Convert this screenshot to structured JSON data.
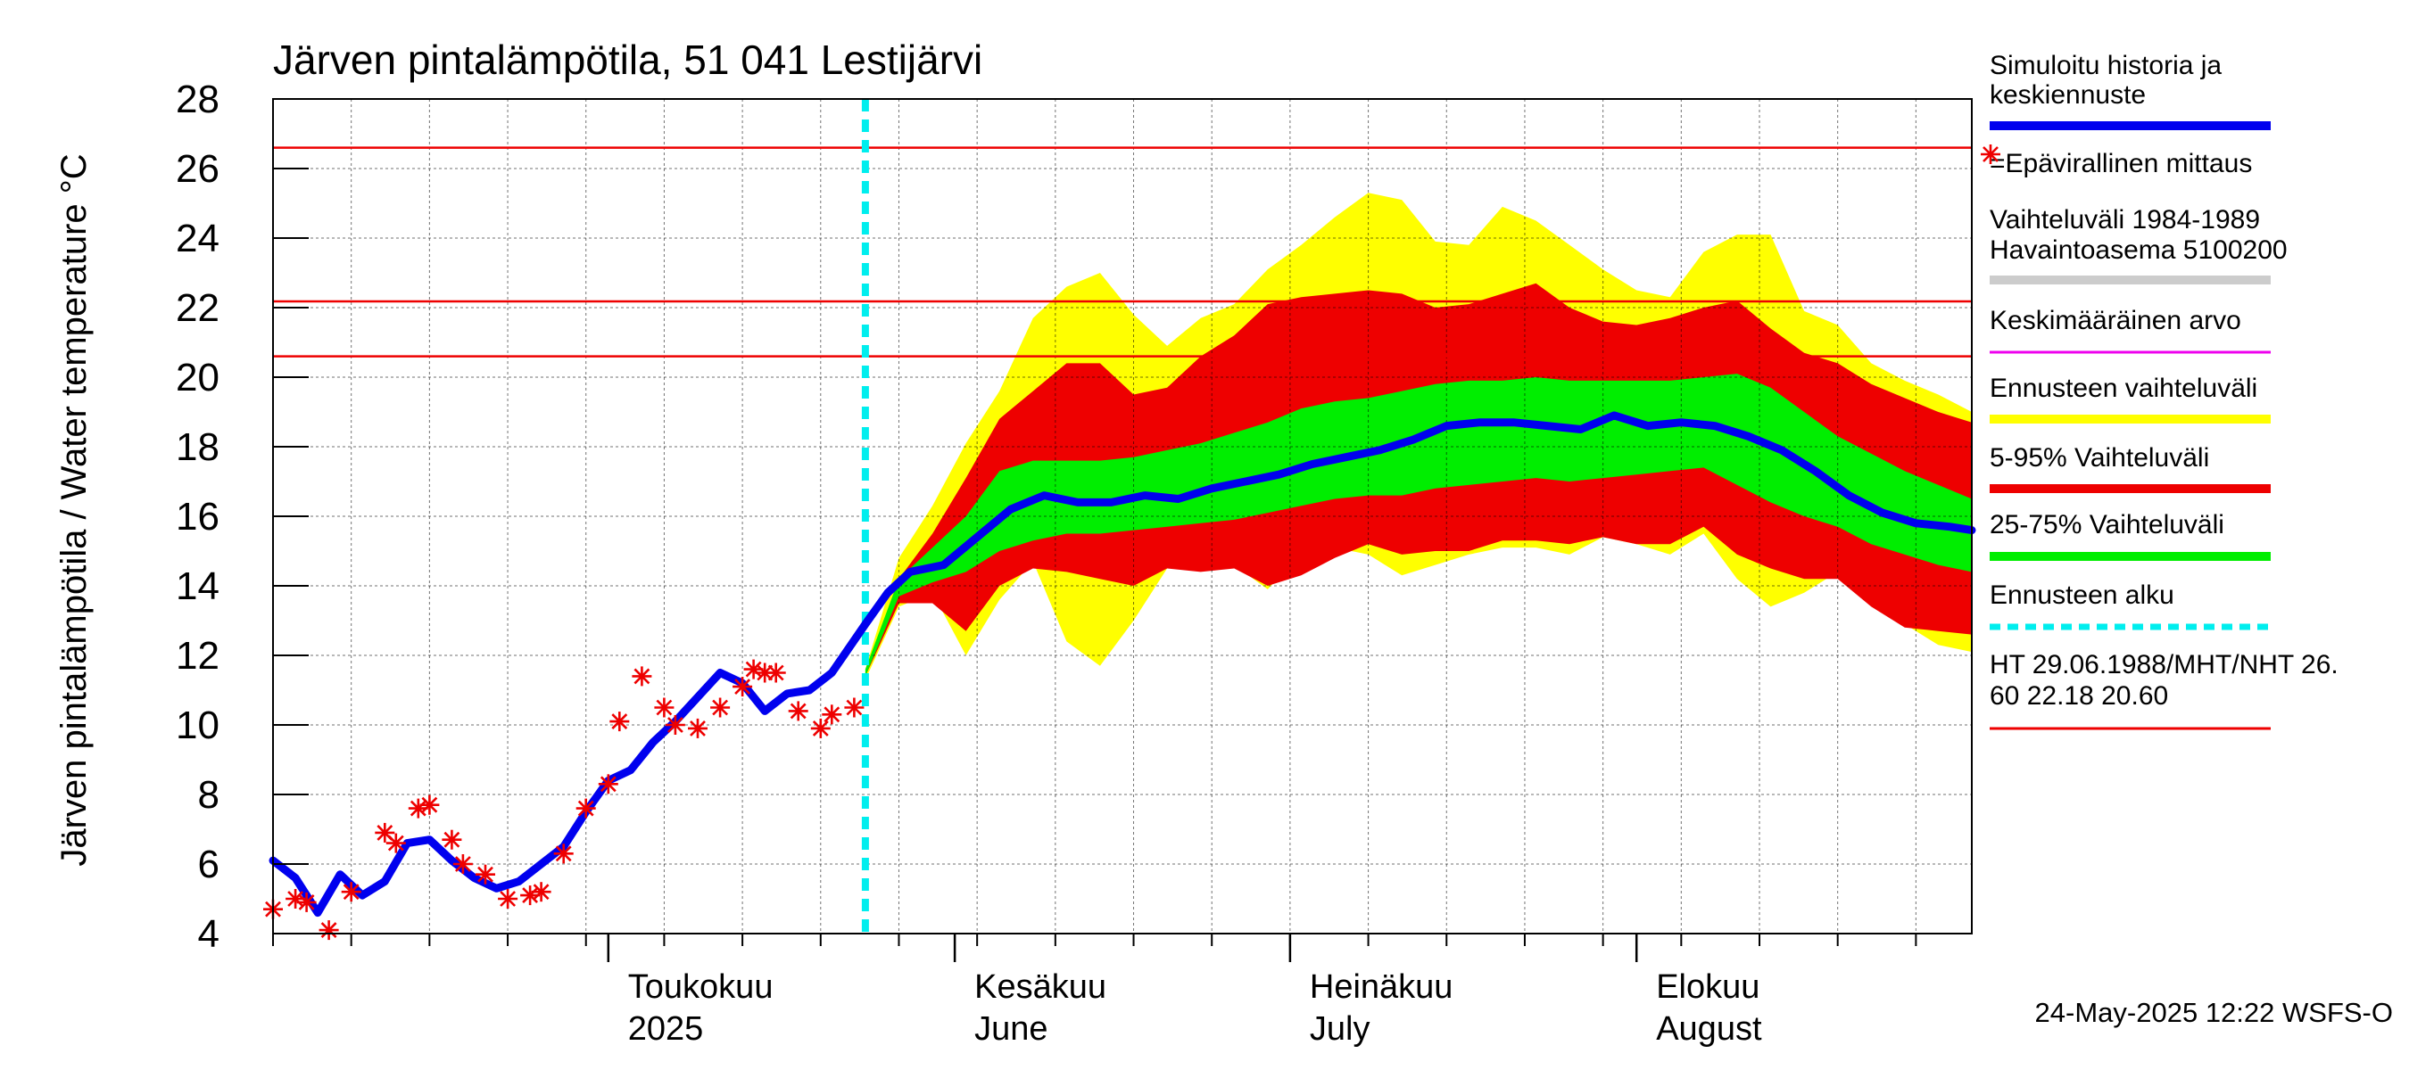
{
  "chart_data": {
    "type": "area",
    "title": "Järven pintalämpötila, 51 041 Lestijärvi",
    "ylabel": "Järven pintalämpötila / Water temperature °C",
    "ylim": [
      4,
      28
    ],
    "y_ticks": [
      4,
      6,
      8,
      10,
      12,
      14,
      16,
      18,
      20,
      22,
      24,
      26,
      28
    ],
    "x_range": [
      "2025-04-01",
      "2025-08-31"
    ],
    "month_labels": [
      {
        "date": "2025-05-01",
        "fi": "Toukokuu",
        "en": "2025"
      },
      {
        "date": "2025-06-01",
        "fi": "Kesäkuu",
        "en": "June"
      },
      {
        "date": "2025-07-01",
        "fi": "Heinäkuu",
        "en": "July"
      },
      {
        "date": "2025-08-01",
        "fi": "Elokuu",
        "en": "August"
      }
    ],
    "grid": true,
    "forecast_start": "2025-05-24",
    "reference_lines": [
      {
        "label": "HT",
        "value": 26.6
      },
      {
        "label": "MHT",
        "value": 22.18
      },
      {
        "label": "NHT",
        "value": 20.6
      }
    ],
    "series": [
      {
        "name": "Simuloitu historia ja keskiennuste",
        "color": "#0000ee",
        "x": [
          "2025-04-01",
          "2025-04-03",
          "2025-04-05",
          "2025-04-07",
          "2025-04-09",
          "2025-04-11",
          "2025-04-13",
          "2025-04-15",
          "2025-04-17",
          "2025-04-19",
          "2025-04-21",
          "2025-04-23",
          "2025-04-25",
          "2025-04-27",
          "2025-04-29",
          "2025-05-01",
          "2025-05-03",
          "2025-05-05",
          "2025-05-07",
          "2025-05-09",
          "2025-05-11",
          "2025-05-13",
          "2025-05-15",
          "2025-05-17",
          "2025-05-19",
          "2025-05-21",
          "2025-05-24",
          "2025-05-26",
          "2025-05-28",
          "2025-05-31",
          "2025-06-03",
          "2025-06-06",
          "2025-06-09",
          "2025-06-12",
          "2025-06-15",
          "2025-06-18",
          "2025-06-21",
          "2025-06-24",
          "2025-06-27",
          "2025-06-30",
          "2025-07-03",
          "2025-07-06",
          "2025-07-09",
          "2025-07-12",
          "2025-07-15",
          "2025-07-18",
          "2025-07-21",
          "2025-07-24",
          "2025-07-27",
          "2025-07-30",
          "2025-08-02",
          "2025-08-05",
          "2025-08-08",
          "2025-08-11",
          "2025-08-14",
          "2025-08-17",
          "2025-08-20",
          "2025-08-23",
          "2025-08-26",
          "2025-08-29",
          "2025-08-31"
        ],
        "values": [
          6.1,
          5.6,
          4.6,
          5.7,
          5.1,
          5.5,
          6.6,
          6.7,
          6.1,
          5.6,
          5.3,
          5.5,
          6.0,
          6.5,
          7.5,
          8.4,
          8.7,
          9.5,
          10.1,
          10.8,
          11.5,
          11.2,
          10.4,
          10.9,
          11.0,
          11.5,
          12.9,
          13.8,
          14.4,
          14.6,
          15.4,
          16.2,
          16.6,
          16.4,
          16.4,
          16.6,
          16.5,
          16.8,
          17.0,
          17.2,
          17.5,
          17.7,
          17.9,
          18.2,
          18.6,
          18.7,
          18.7,
          18.6,
          18.5,
          18.9,
          18.6,
          18.7,
          18.6,
          18.3,
          17.9,
          17.3,
          16.6,
          16.1,
          15.8,
          15.7,
          15.6
        ]
      },
      {
        "name": "=Epävirallinen mittaus",
        "color": "#ee0000",
        "x": [
          "2025-04-01",
          "2025-04-03",
          "2025-04-04",
          "2025-04-06",
          "2025-04-08",
          "2025-04-11",
          "2025-04-12",
          "2025-04-14",
          "2025-04-15",
          "2025-04-17",
          "2025-04-18",
          "2025-04-20",
          "2025-04-22",
          "2025-04-24",
          "2025-04-25",
          "2025-04-27",
          "2025-04-29",
          "2025-05-01",
          "2025-05-02",
          "2025-05-04",
          "2025-05-06",
          "2025-05-07",
          "2025-05-09",
          "2025-05-11",
          "2025-05-13",
          "2025-05-14",
          "2025-05-15",
          "2025-05-16",
          "2025-05-18",
          "2025-05-20",
          "2025-05-21",
          "2025-05-23"
        ],
        "values": [
          4.7,
          5.0,
          4.9,
          4.1,
          5.2,
          6.9,
          6.6,
          7.6,
          7.7,
          6.7,
          6.0,
          5.7,
          5.0,
          5.1,
          5.2,
          6.3,
          7.6,
          8.3,
          10.1,
          11.4,
          10.5,
          10.0,
          9.9,
          10.5,
          11.1,
          11.6,
          11.5,
          11.5,
          10.4,
          9.9,
          10.3,
          10.5
        ]
      }
    ],
    "bands": {
      "x": [
        "2025-05-24",
        "2025-05-27",
        "2025-05-30",
        "2025-06-02",
        "2025-06-05",
        "2025-06-08",
        "2025-06-11",
        "2025-06-14",
        "2025-06-17",
        "2025-06-20",
        "2025-06-23",
        "2025-06-26",
        "2025-06-29",
        "2025-07-02",
        "2025-07-05",
        "2025-07-08",
        "2025-07-11",
        "2025-07-14",
        "2025-07-17",
        "2025-07-20",
        "2025-07-23",
        "2025-07-26",
        "2025-07-29",
        "2025-08-01",
        "2025-08-04",
        "2025-08-07",
        "2025-08-10",
        "2025-08-13",
        "2025-08-16",
        "2025-08-19",
        "2025-08-22",
        "2025-08-25",
        "2025-08-28",
        "2025-08-31"
      ],
      "ennuste": {
        "name": "Ennusteen vaihteluväli",
        "color": "#ffff00",
        "low": [
          11.3,
          13.4,
          13.8,
          12.0,
          13.6,
          14.7,
          12.4,
          11.7,
          13.0,
          14.5,
          14.6,
          14.6,
          13.9,
          14.9,
          15.1,
          14.9,
          14.3,
          14.6,
          14.9,
          15.1,
          15.1,
          14.9,
          15.4,
          15.2,
          14.9,
          15.5,
          14.2,
          13.4,
          13.8,
          14.4,
          13.9,
          12.9,
          12.3,
          12.1
        ],
        "high": [
          11.6,
          14.8,
          16.3,
          18.1,
          19.6,
          21.7,
          22.6,
          23.0,
          21.8,
          20.9,
          21.7,
          22.1,
          23.1,
          23.8,
          24.6,
          25.3,
          25.1,
          23.9,
          23.8,
          24.9,
          24.5,
          23.8,
          23.1,
          22.5,
          22.3,
          23.6,
          24.1,
          24.1,
          21.9,
          21.5,
          20.4,
          19.9,
          19.5,
          19.0
        ]
      },
      "p5_95": {
        "name": "5-95% Vaihteluväli",
        "color": "#ee0000",
        "low": [
          11.4,
          13.5,
          13.5,
          12.7,
          14.0,
          14.5,
          14.4,
          14.2,
          14.0,
          14.5,
          14.4,
          14.5,
          14.0,
          14.3,
          14.8,
          15.2,
          14.9,
          15.0,
          15.0,
          15.3,
          15.3,
          15.2,
          15.4,
          15.2,
          15.2,
          15.7,
          14.9,
          14.5,
          14.2,
          14.2,
          13.4,
          12.8,
          12.7,
          12.6
        ],
        "high": [
          11.5,
          14.2,
          15.5,
          17.1,
          18.8,
          19.6,
          20.4,
          20.4,
          19.5,
          19.7,
          20.6,
          21.2,
          22.1,
          22.3,
          22.4,
          22.5,
          22.4,
          22.0,
          22.1,
          22.4,
          22.7,
          22.0,
          21.6,
          21.5,
          21.7,
          22.0,
          22.2,
          21.4,
          20.7,
          20.4,
          19.8,
          19.4,
          19.0,
          18.7
        ]
      },
      "p25_75": {
        "name": "25-75% Vaihteluväli",
        "color": "#00ee00",
        "low": [
          11.4,
          13.7,
          14.1,
          14.4,
          15.0,
          15.3,
          15.5,
          15.5,
          15.6,
          15.7,
          15.8,
          15.9,
          16.1,
          16.3,
          16.5,
          16.6,
          16.6,
          16.8,
          16.9,
          17.0,
          17.1,
          17.0,
          17.1,
          17.2,
          17.3,
          17.4,
          16.9,
          16.4,
          16.0,
          15.7,
          15.2,
          14.9,
          14.6,
          14.4
        ],
        "high": [
          11.6,
          14.2,
          15.1,
          16.0,
          17.3,
          17.6,
          17.6,
          17.6,
          17.7,
          17.9,
          18.1,
          18.4,
          18.7,
          19.1,
          19.3,
          19.4,
          19.6,
          19.8,
          19.9,
          19.9,
          20.0,
          19.9,
          19.9,
          19.9,
          19.9,
          20.0,
          20.1,
          19.7,
          19.0,
          18.3,
          17.8,
          17.3,
          16.9,
          16.5
        ]
      }
    },
    "legend": {
      "placement": "right",
      "items": [
        {
          "text": "Simuloitu historia ja keskiennuste",
          "color": "#0000ee",
          "kind": "line"
        },
        {
          "text": "=Epävirallinen mittaus",
          "color": "#ee0000",
          "kind": "marker"
        },
        {
          "text": "Vaihteluväli 1984-1989  Havaintoasema 5100200",
          "color": "#cccccc",
          "kind": "line"
        },
        {
          "text": "Keskimääräinen arvo",
          "color": "#ee00ee",
          "kind": "thin"
        },
        {
          "text": "Ennusteen vaihteluväli",
          "color": "#ffff00",
          "kind": "line"
        },
        {
          "text": "5-95% Vaihteluväli",
          "color": "#ee0000",
          "kind": "line"
        },
        {
          "text": "25-75% Vaihteluväli",
          "color": "#00ee00",
          "kind": "line"
        },
        {
          "text": "Ennusteen alku",
          "color": "#00eeee",
          "kind": "dashed"
        },
        {
          "text": "HT 29.06.1988/MHT/NHT 26. 60 22.18 20.60",
          "color": "#ee0000",
          "kind": "thin"
        }
      ]
    },
    "footer": "24-May-2025 12:22 WSFS-O"
  }
}
